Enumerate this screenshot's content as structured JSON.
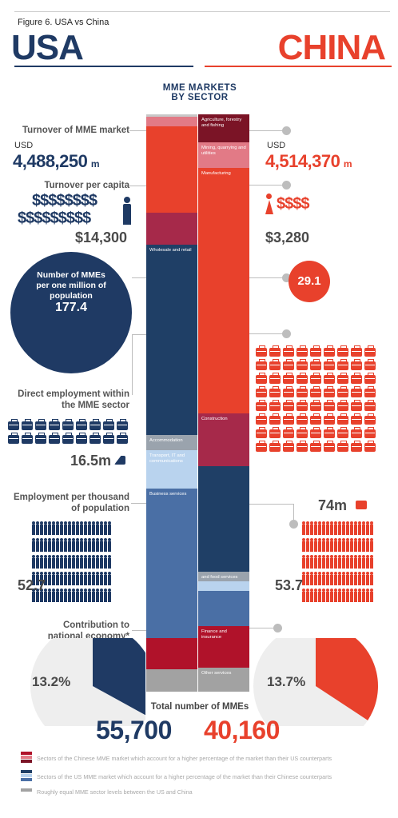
{
  "figure_title": "Figure 6. USA vs China",
  "usa_title": "USA",
  "china_title": "CHINA",
  "center_title_line1": "MME MARKETS",
  "center_title_line2": "BY SECTOR",
  "turnover": {
    "label": "Turnover of MME market",
    "usa_currency": "USD",
    "usa_value": "4,488,250",
    "usa_unit": "m",
    "china_currency": "USD",
    "china_value": "4,514,370",
    "china_unit": "m"
  },
  "per_capita": {
    "label": "Turnover per capita",
    "usa_symbols_row1": "$$$$$$$$",
    "usa_symbols_row2": "$$$$$$$$$",
    "usa_value": "$14,300",
    "china_symbols": "$$$$",
    "china_value": "$3,280"
  },
  "mmes_per_million": {
    "label": "Number of MMEs per one million of population",
    "usa_value": "177.4",
    "china_value": "29.1"
  },
  "employment": {
    "label": "Direct employment within the MME sector",
    "usa_value": "16.5m",
    "china_value": "74m"
  },
  "employment_per_thousand": {
    "label": "Employment per thousand of population",
    "usa_value": "52.7",
    "china_value": "53.7"
  },
  "contribution": {
    "label": "Contribution to national economy*",
    "usa_value": "13.2%",
    "china_value": "13.7%",
    "usa_fraction": 0.132,
    "china_fraction": 0.137
  },
  "total": {
    "label": "Total number of MMEs",
    "usa_value": "55,700",
    "china_value": "40,160"
  },
  "usa_sectors": [
    {
      "name": "",
      "share": 0.7,
      "color": "#c8c8c8"
    },
    {
      "name": "",
      "share": 3.2,
      "color": "#e27a86"
    },
    {
      "name": "",
      "share": 27.0,
      "color": "#e8412c"
    },
    {
      "name": "",
      "share": 10.2,
      "color": "#a6294a"
    },
    {
      "name": "Wholesale and retail",
      "share": 60.0,
      "color": "#1f3f66"
    },
    {
      "name": "Accommodation",
      "share": 4.8,
      "color": "#9aa3ad"
    },
    {
      "name": "Transport, IT and communications",
      "share": 12.2,
      "color": "#b9d3ee"
    },
    {
      "name": "Business services",
      "share": 47.0,
      "color": "#4a6fa5"
    },
    {
      "name": "",
      "share": 10.0,
      "color": "#b0122a"
    },
    {
      "name": "",
      "share": 7.0,
      "color": "#a2a2a2"
    }
  ],
  "china_sectors": [
    {
      "name": "Agriculture, forestry and fishing",
      "share": 8.8,
      "color": "#7b1426"
    },
    {
      "name": "Mining, quarrying and utilities",
      "share": 7.9,
      "color": "#e27a86"
    },
    {
      "name": "Manufacturing",
      "share": 77.0,
      "color": "#e8412c"
    },
    {
      "name": "Construction",
      "share": 16.5,
      "color": "#a6294a"
    },
    {
      "name": "",
      "share": 33.0,
      "color": "#1f3f66"
    },
    {
      "name": "and food services",
      "share": 3.0,
      "color": "#9aa3ad"
    },
    {
      "name": "",
      "share": 3.0,
      "color": "#b9d3ee"
    },
    {
      "name": "",
      "share": 11.0,
      "color": "#4a6fa5"
    },
    {
      "name": "Finance and insurance",
      "share": 13.0,
      "color": "#b0122a"
    },
    {
      "name": "Other services",
      "share": 7.5,
      "color": "#a2a2a2"
    }
  ],
  "legend": [
    {
      "text": "Sectors of the Chinese MME market which account for a higher percentage of the market than their US counterparts",
      "colors": [
        "#b0122a",
        "#e27a86",
        "#7b1426"
      ]
    },
    {
      "text": "Sectors of the US MME market which account for a higher percentage of the market than their Chinese counterparts",
      "colors": [
        "#1f3f66",
        "#b9d3ee",
        "#4a6fa5"
      ]
    },
    {
      "text": "Roughly equal MME sector levels between the US and China",
      "colors": [
        "#a2a2a2"
      ]
    }
  ],
  "colors": {
    "usa": "#1f3a64",
    "china": "#e8412c",
    "neutral": "#bdbdbd"
  }
}
